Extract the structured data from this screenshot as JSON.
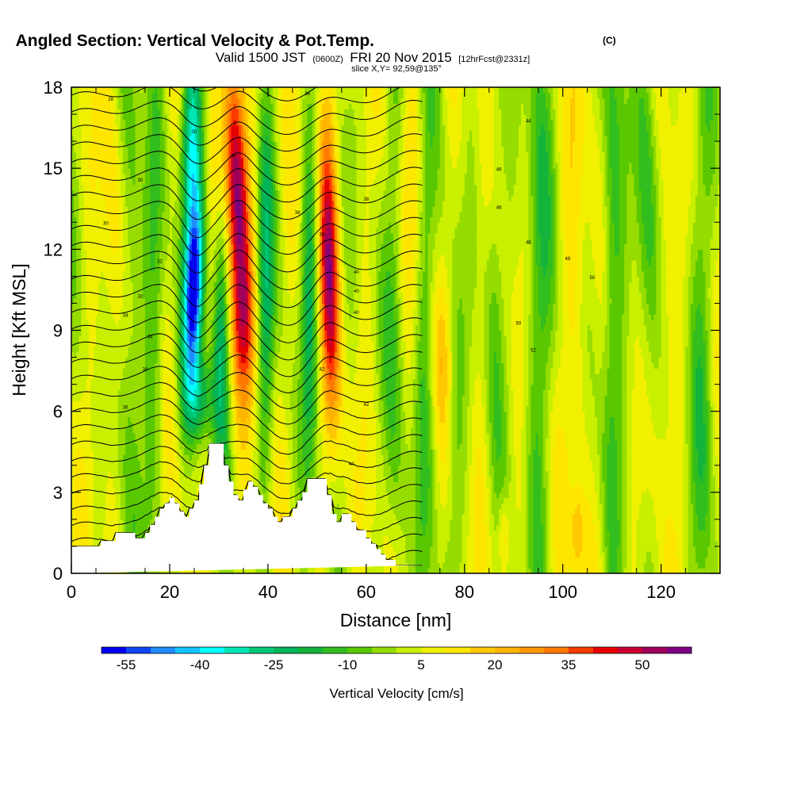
{
  "title": {
    "main": "Angled Section: Vertical Velocity & Pot.Temp.",
    "main_tag": "(C)",
    "valid_prefix": "Valid 1500 JST",
    "valid_zulu": "(0600Z)",
    "valid_date": "FRI 20 Nov 2015",
    "valid_fcst": "[12hrFcst@2331z]",
    "slice": "slice X,Y= 92,59@135°"
  },
  "chart_data": {
    "type": "heatmap",
    "xlabel": "Distance [nm]",
    "ylabel": "Height [Kft MSL]",
    "xlim": [
      0,
      132
    ],
    "ylim": [
      0,
      18
    ],
    "x_ticks": [
      0,
      20,
      40,
      60,
      80,
      100,
      120
    ],
    "y_ticks": [
      0,
      3,
      6,
      9,
      12,
      15,
      18
    ],
    "field": "Vertical Velocity",
    "colorbar": {
      "label": "Vertical Velocity [cm/s]",
      "tick_labels": [
        "-55",
        "-40",
        "-25",
        "-10",
        "5",
        "20",
        "35",
        "50"
      ],
      "levels": [
        -60,
        -55,
        -50,
        -45,
        -40,
        -35,
        -30,
        -25,
        -20,
        -15,
        -10,
        -5,
        0,
        5,
        10,
        15,
        20,
        25,
        30,
        35,
        40,
        45,
        50,
        55,
        60
      ],
      "colors": [
        "#0000f0",
        "#0f46ff",
        "#1e8cff",
        "#14c3ff",
        "#00ffff",
        "#00e6b4",
        "#00c878",
        "#00b45a",
        "#14b43c",
        "#32be1e",
        "#5ac800",
        "#96dc00",
        "#c8f000",
        "#f0f000",
        "#ffe600",
        "#ffc800",
        "#ffb400",
        "#ff9600",
        "#ff7800",
        "#ff3c00",
        "#e60000",
        "#c80032",
        "#a0005a",
        "#7d0082"
      ]
    },
    "features": [
      {
        "kind": "downdraft",
        "x": 25,
        "y_center": 11,
        "peak_w": -55
      },
      {
        "kind": "updraft",
        "x": 34,
        "y_center": 13,
        "peak_w": 55
      },
      {
        "kind": "updraft",
        "x": 52,
        "y_center": 11,
        "peak_w": 40
      },
      {
        "kind": "downdraft",
        "x": 30,
        "y_center": 9,
        "peak_w": -20
      },
      {
        "kind": "downdraft",
        "x": 48,
        "y_center": 10,
        "peak_w": -20
      }
    ],
    "terrain": {
      "x": [
        0,
        6,
        6,
        9,
        9,
        13,
        13,
        15,
        15,
        16,
        16,
        17,
        17,
        18,
        18,
        19,
        19,
        20,
        20,
        21,
        21,
        22,
        22,
        23,
        23,
        24,
        24,
        25,
        25,
        26,
        26,
        27,
        27,
        28,
        28,
        29,
        29,
        31,
        31,
        32,
        32,
        33,
        33,
        34,
        34,
        35,
        35,
        36,
        36,
        37,
        37,
        38,
        38,
        39,
        39,
        40,
        40,
        41,
        41,
        42,
        42,
        43,
        43,
        45,
        45,
        46,
        46,
        47,
        47,
        48,
        48,
        49,
        49,
        52,
        52,
        53,
        53,
        54,
        54,
        55,
        55,
        57,
        57,
        58,
        58,
        60,
        60,
        61,
        61,
        62,
        62,
        63,
        63,
        64,
        64,
        66,
        66,
        68,
        68,
        70,
        70,
        72,
        72,
        132
      ],
      "height": [
        1.0,
        1.0,
        1.2,
        1.2,
        1.5,
        1.5,
        1.3,
        1.3,
        1.5,
        1.5,
        1.8,
        1.8,
        2.1,
        2.1,
        2.4,
        2.4,
        2.6,
        2.6,
        2.8,
        2.8,
        2.6,
        2.6,
        2.3,
        2.3,
        2.1,
        2.1,
        2.4,
        2.4,
        2.7,
        2.7,
        3.3,
        3.3,
        4.0,
        4.0,
        4.8,
        4.8,
        4.8,
        4.8,
        4.0,
        4.0,
        3.4,
        3.4,
        2.9,
        2.9,
        2.7,
        2.7,
        3.1,
        3.1,
        3.4,
        3.4,
        3.2,
        3.2,
        2.9,
        2.9,
        2.6,
        2.6,
        2.4,
        2.4,
        2.1,
        2.1,
        1.9,
        1.9,
        2.1,
        2.1,
        2.4,
        2.4,
        2.7,
        2.7,
        3.0,
        3.0,
        3.5,
        3.5,
        3.5,
        3.5,
        2.9,
        2.9,
        2.2,
        2.2,
        1.9,
        1.9,
        2.2,
        2.2,
        1.9,
        1.9,
        1.6,
        1.6,
        1.3,
        1.3,
        1.1,
        1.1,
        0.9,
        0.9,
        0.7,
        0.7,
        0.5,
        0.5,
        0.3,
        0.3,
        0.3,
        0.3,
        0.3,
        0.3
      ]
    },
    "theta_contour_labels": [
      "28",
      "30",
      "30",
      "30",
      "32",
      "32",
      "34",
      "34",
      "34",
      "36",
      "36",
      "36",
      "38",
      "38",
      "38",
      "40",
      "40",
      "40",
      "42",
      "42",
      "44",
      "44",
      "46",
      "46",
      "48",
      "48",
      "50",
      "50",
      "52"
    ]
  }
}
